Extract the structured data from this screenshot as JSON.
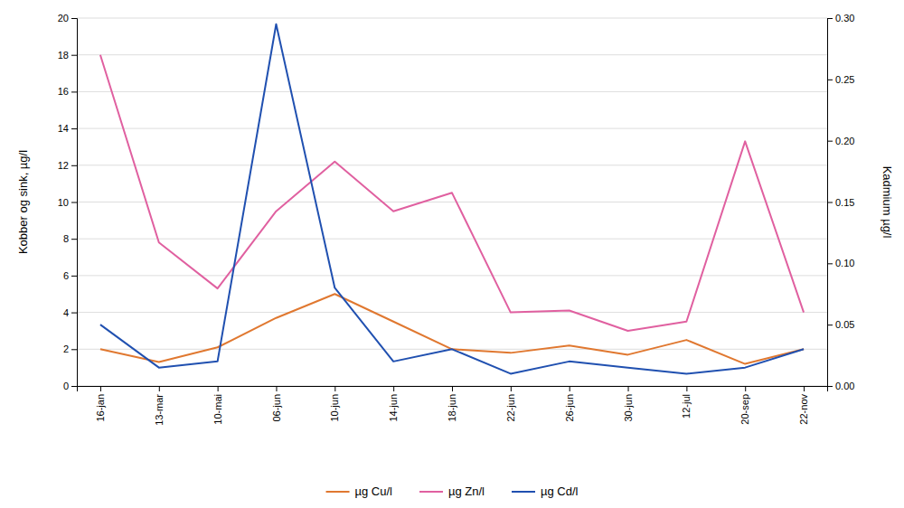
{
  "chart_data": {
    "type": "line",
    "categories": [
      "16-jan",
      "13-mar",
      "10-mai",
      "06-jun",
      "10-jun",
      "14-jun",
      "18-jun",
      "22-jun",
      "26-jun",
      "30-jun",
      "12-jul",
      "20-sep",
      "22-nov"
    ],
    "series": [
      {
        "name": "µg Cu/l",
        "color": "#E07830",
        "values": [
          2.0,
          1.3,
          2.1,
          3.7,
          5.0,
          3.5,
          2.0,
          1.8,
          2.2,
          1.7,
          2.5,
          1.2,
          2.0
        ]
      },
      {
        "name": "µg Zn/l",
        "color": "#E060A0",
        "values": [
          18.0,
          7.8,
          5.3,
          9.5,
          12.2,
          9.5,
          10.5,
          4.0,
          4.1,
          3.0,
          3.5,
          13.3,
          4.0
        ]
      },
      {
        "name": "µg Cd/l",
        "color": "#2050B0",
        "axis": "y2",
        "values": [
          0.05,
          0.015,
          0.02,
          0.295,
          0.08,
          0.02,
          0.03,
          0.01,
          0.02,
          0.015,
          0.01,
          0.015,
          0.03
        ]
      }
    ],
    "ylabel": "Kobber og sink, µg/l",
    "y2label": "Kadmium µg/l",
    "ylim": [
      0,
      20
    ],
    "yticks": [
      0,
      2,
      4,
      6,
      8,
      10,
      12,
      14,
      16,
      18,
      20
    ],
    "y2lim": [
      0,
      0.3
    ],
    "y2ticks": [
      {
        "value": 0,
        "label": "0.00"
      },
      0.05,
      {
        "value": 0.1,
        "label": "0.10"
      },
      0.15,
      {
        "value": 0.2,
        "label": "0.20"
      },
      0.25,
      {
        "value": 0.3,
        "label": "0.30"
      }
    ],
    "grid": true,
    "legend": "bottom"
  }
}
